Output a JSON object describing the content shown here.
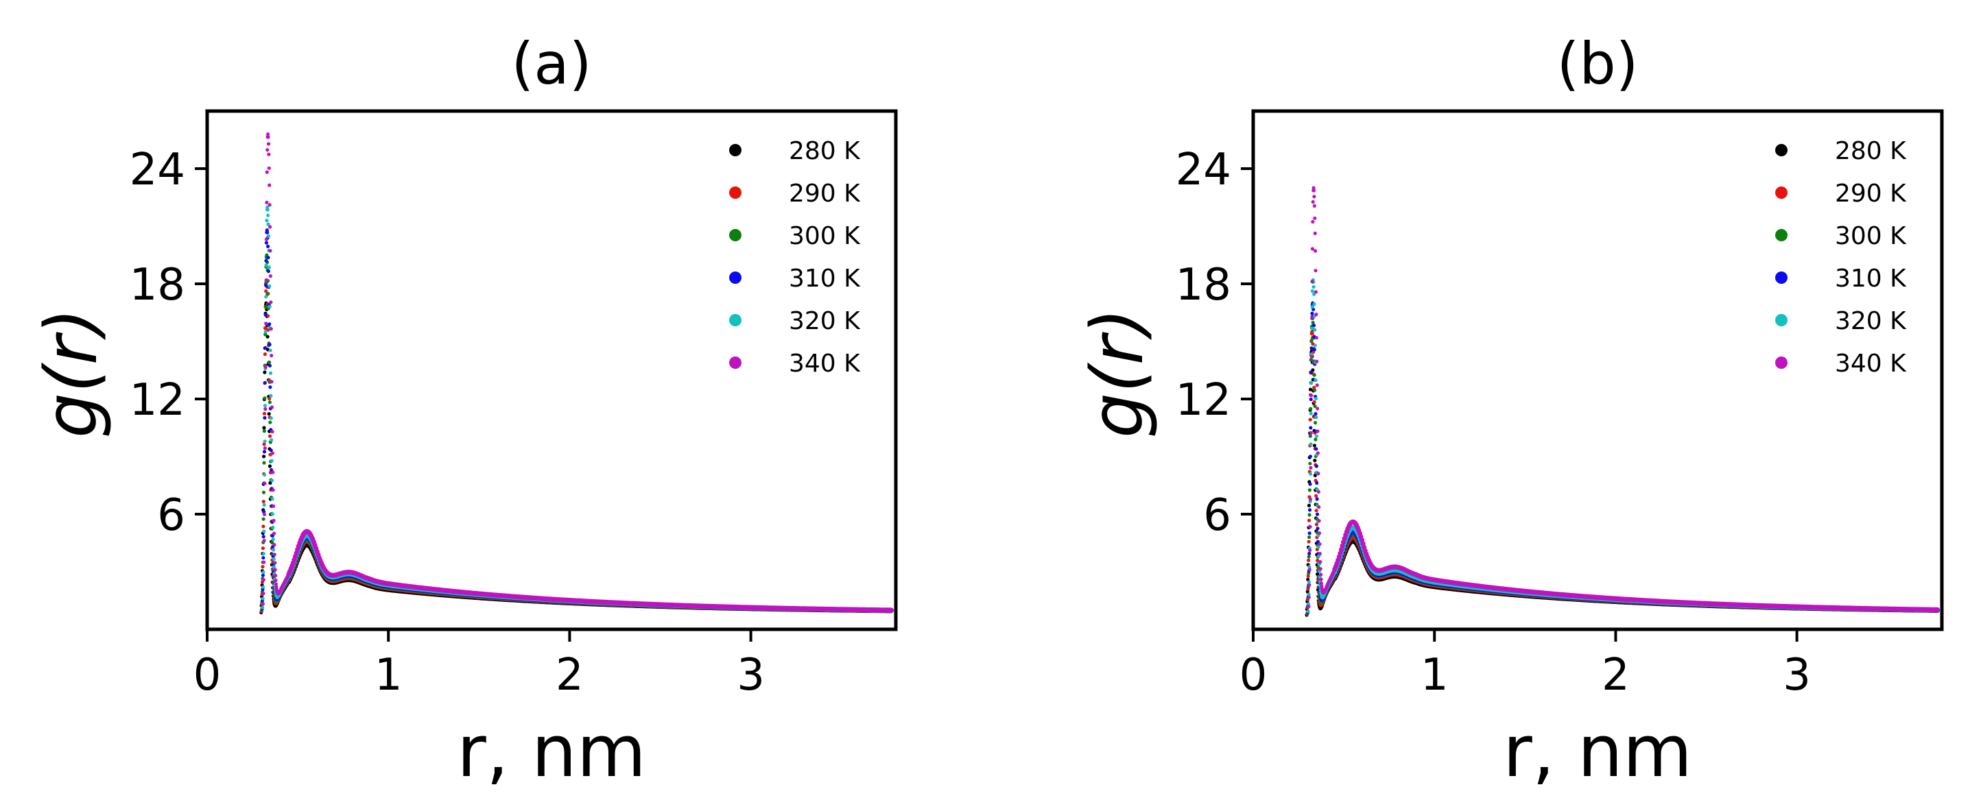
{
  "chart_data": [
    {
      "type": "scatter",
      "title": "(a)",
      "xlabel": "r, nm",
      "ylabel": "g(r)",
      "xlim": [
        0,
        3.8
      ],
      "ylim": [
        0,
        27
      ],
      "xticks": [
        0,
        1,
        2,
        3
      ],
      "xtick_labels": [
        "0",
        "1",
        "2",
        "3"
      ],
      "yticks": [
        6,
        12,
        18,
        24
      ],
      "ytick_labels": [
        "6",
        "12",
        "18",
        "24"
      ],
      "legend_position": "top-right",
      "series": [
        {
          "name": "280 K",
          "color": "#000000",
          "peak_r": 0.325,
          "peak_g": 17.0,
          "first_peak": 4.4,
          "second_peak": 3.1,
          "tail": 2.55
        },
        {
          "name": "290 K",
          "color": "#e8120b",
          "peak_r": 0.327,
          "peak_g": 18.2,
          "first_peak": 4.6,
          "second_peak": 3.2,
          "tail": 2.65
        },
        {
          "name": "300 K",
          "color": "#0c800c",
          "peak_r": 0.328,
          "peak_g": 19.5,
          "first_peak": 4.7,
          "second_peak": 3.3,
          "tail": 2.72
        },
        {
          "name": "310 K",
          "color": "#0b0bf0",
          "peak_r": 0.33,
          "peak_g": 20.8,
          "first_peak": 4.8,
          "second_peak": 3.35,
          "tail": 2.78
        },
        {
          "name": "320 K",
          "color": "#12c0c0",
          "peak_r": 0.332,
          "peak_g": 22.0,
          "first_peak": 4.9,
          "second_peak": 3.45,
          "tail": 2.85
        },
        {
          "name": "340 K",
          "color": "#c012c0",
          "peak_r": 0.335,
          "peak_g": 25.8,
          "first_peak": 5.1,
          "second_peak": 3.55,
          "tail": 2.95
        }
      ]
    },
    {
      "type": "scatter",
      "title": "(b)",
      "xlabel": "r, nm",
      "ylabel": "g(r)",
      "xlim": [
        0,
        3.8
      ],
      "ylim": [
        0,
        27
      ],
      "xticks": [
        0,
        1,
        2,
        3
      ],
      "xtick_labels": [
        "0",
        "1",
        "2",
        "3"
      ],
      "yticks": [
        6,
        12,
        18,
        24
      ],
      "ytick_labels": [
        "6",
        "12",
        "18",
        "24"
      ],
      "legend_position": "top-right",
      "series": [
        {
          "name": "280 K",
          "color": "#000000",
          "peak_r": 0.322,
          "peak_g": 14.5,
          "first_peak": 4.6,
          "second_peak": 3.3,
          "tail": 2.75
        },
        {
          "name": "290 K",
          "color": "#e8120b",
          "peak_r": 0.324,
          "peak_g": 15.5,
          "first_peak": 4.8,
          "second_peak": 3.45,
          "tail": 2.85
        },
        {
          "name": "300 K",
          "color": "#0c800c",
          "peak_r": 0.326,
          "peak_g": 16.3,
          "first_peak": 5.0,
          "second_peak": 3.55,
          "tail": 2.92
        },
        {
          "name": "310 K",
          "color": "#0b0bf0",
          "peak_r": 0.328,
          "peak_g": 17.0,
          "first_peak": 5.1,
          "second_peak": 3.6,
          "tail": 2.97
        },
        {
          "name": "320 K",
          "color": "#12c0c0",
          "peak_r": 0.33,
          "peak_g": 18.2,
          "first_peak": 5.3,
          "second_peak": 3.7,
          "tail": 3.05
        },
        {
          "name": "340 K",
          "color": "#c012c0",
          "peak_r": 0.333,
          "peak_g": 23.0,
          "first_peak": 5.6,
          "second_peak": 3.9,
          "tail": 3.2
        }
      ]
    }
  ]
}
